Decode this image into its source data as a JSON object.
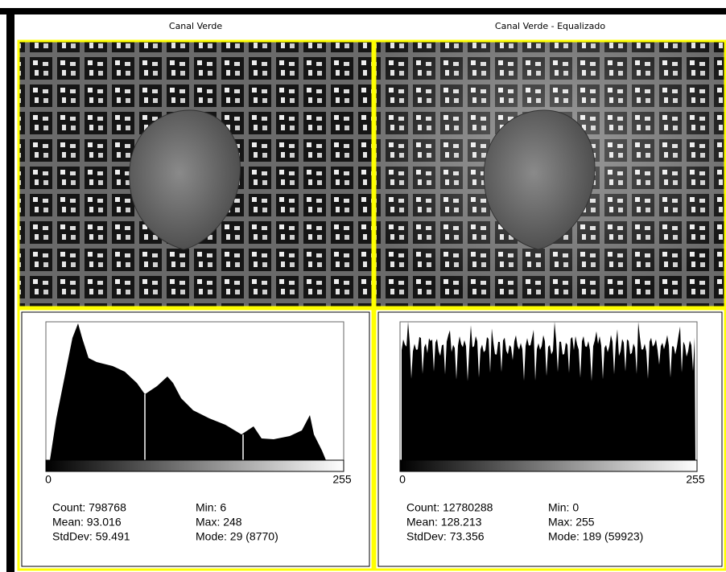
{
  "panels": [
    {
      "title": "Canal Verde",
      "axis_min": "0",
      "axis_max": "255",
      "stats": [
        "Count: 798768",
        "Min: 6",
        "Mean: 93.016",
        "Max: 248",
        "StdDev: 59.491",
        "Mode: 29 (8770)"
      ]
    },
    {
      "title": "Canal Verde -  Equalizado",
      "axis_min": "0",
      "axis_max": "255",
      "stats": [
        "Count: 12780288",
        "Min: 0",
        "Mean: 128.213",
        "Max: 255",
        "StdDev: 73.356",
        "Mode: 189 (59923)"
      ]
    }
  ]
}
